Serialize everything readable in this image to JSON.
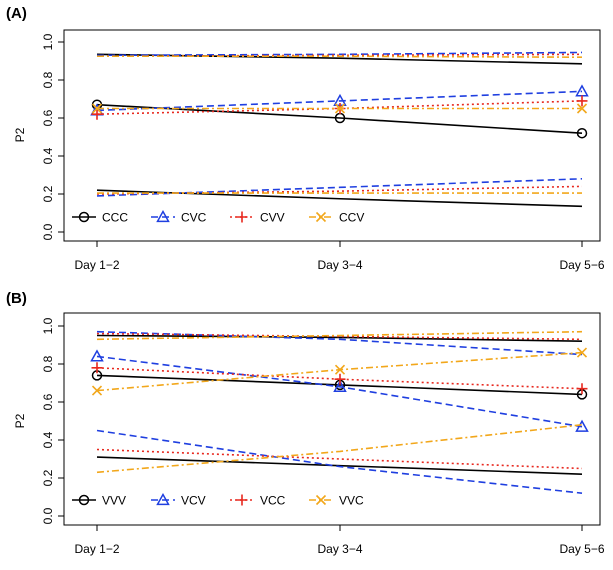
{
  "chart_data": [
    {
      "type": "line",
      "panel_label": "(A)",
      "ylabel": "P2",
      "categories": [
        "Day 1−2",
        "Day 3−4",
        "Day 5−6"
      ],
      "ylim": [
        0.0,
        1.0
      ],
      "yticks": [
        "0.0",
        "0.2",
        "0.4",
        "0.6",
        "0.8",
        "1.0"
      ],
      "legend_position": "bottom-left",
      "series": [
        {
          "name": "CCC",
          "color": "#000000",
          "style": "solid",
          "marker": "circle",
          "values": [
            0.67,
            0.6,
            0.52
          ],
          "upper": [
            0.935,
            0.915,
            0.885
          ],
          "lower": [
            0.22,
            0.175,
            0.135
          ]
        },
        {
          "name": "CVC",
          "color": "#1f3fe0",
          "style": "dashed",
          "marker": "triangle",
          "values": [
            0.64,
            0.69,
            0.74
          ],
          "upper": [
            0.93,
            0.935,
            0.945
          ],
          "lower": [
            0.19,
            0.235,
            0.28
          ]
        },
        {
          "name": "CVV",
          "color": "#e8281e",
          "style": "dotted",
          "marker": "plus",
          "values": [
            0.62,
            0.65,
            0.69
          ],
          "upper": [
            0.925,
            0.93,
            0.935
          ],
          "lower": [
            0.2,
            0.215,
            0.24
          ]
        },
        {
          "name": "CCV",
          "color": "#f2a71b",
          "style": "dashdot",
          "marker": "x",
          "values": [
            0.65,
            0.65,
            0.65
          ],
          "upper": [
            0.925,
            0.925,
            0.92
          ],
          "lower": [
            0.205,
            0.205,
            0.205
          ]
        }
      ]
    },
    {
      "type": "line",
      "panel_label": "(B)",
      "ylabel": "P2",
      "categories": [
        "Day 1−2",
        "Day 3−4",
        "Day 5−6"
      ],
      "ylim": [
        0.0,
        1.0
      ],
      "yticks": [
        "0.0",
        "0.2",
        "0.4",
        "0.6",
        "0.8",
        "1.0"
      ],
      "legend_position": "bottom-left",
      "series": [
        {
          "name": "VVV",
          "color": "#000000",
          "style": "solid",
          "marker": "circle",
          "values": [
            0.74,
            0.69,
            0.64
          ],
          "upper": [
            0.95,
            0.94,
            0.92
          ],
          "lower": [
            0.31,
            0.265,
            0.22
          ]
        },
        {
          "name": "VCV",
          "color": "#1f3fe0",
          "style": "dashed",
          "marker": "triangle",
          "values": [
            0.84,
            0.68,
            0.47
          ],
          "upper": [
            0.97,
            0.93,
            0.85
          ],
          "lower": [
            0.45,
            0.26,
            0.12
          ]
        },
        {
          "name": "VCC",
          "color": "#e8281e",
          "style": "dotted",
          "marker": "plus",
          "values": [
            0.78,
            0.72,
            0.67
          ],
          "upper": [
            0.96,
            0.945,
            0.93
          ],
          "lower": [
            0.35,
            0.3,
            0.25
          ]
        },
        {
          "name": "VVC",
          "color": "#f2a71b",
          "style": "dashdot",
          "marker": "x",
          "values": [
            0.66,
            0.77,
            0.86
          ],
          "upper": [
            0.93,
            0.95,
            0.97
          ],
          "lower": [
            0.23,
            0.34,
            0.48
          ]
        }
      ]
    }
  ]
}
